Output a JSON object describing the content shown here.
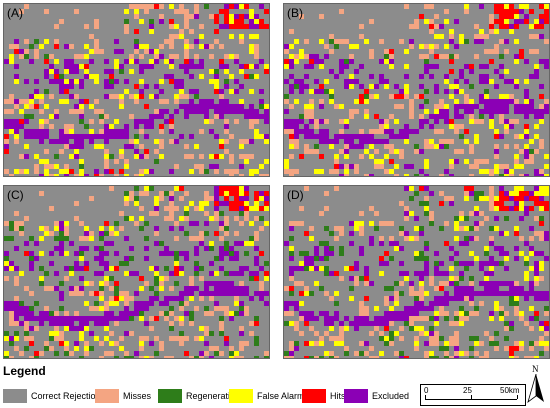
{
  "panels": [
    {
      "label": "(A)"
    },
    {
      "label": "(B)"
    },
    {
      "label": "(C)"
    },
    {
      "label": "(D)"
    }
  ],
  "legend": {
    "title": "Legend",
    "items": [
      {
        "label": "Correct Rejection",
        "color": "#8c8c8c"
      },
      {
        "label": "Misses",
        "color": "#f4a582"
      },
      {
        "label": "Regeneration",
        "color": "#2e7d1a"
      },
      {
        "label": "False Alarms",
        "color": "#ffff00"
      },
      {
        "label": "Hits",
        "color": "#ff0000"
      },
      {
        "label": "Excluded",
        "color": "#8b00b5"
      }
    ]
  },
  "scalebar": {
    "labels": [
      "0",
      "25",
      "50km"
    ]
  },
  "north_arrow": {
    "label": "N"
  }
}
